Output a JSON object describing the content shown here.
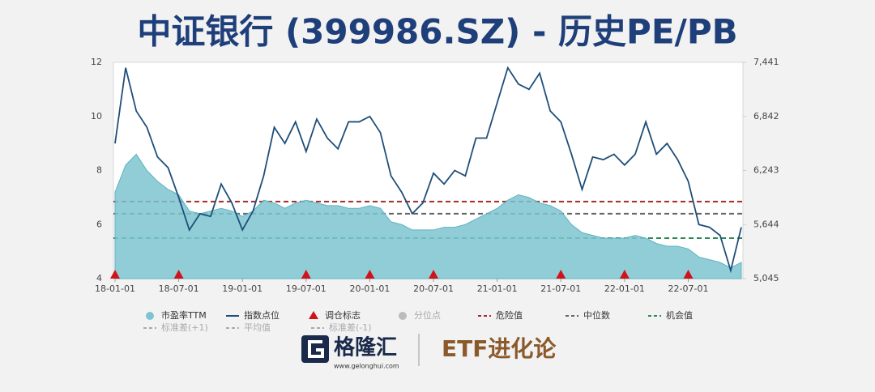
{
  "chart_data": {
    "type": "pe-band",
    "title": "中证银行 (399986.SZ) - 历史PE/PB",
    "categories": [
      "18-01-01",
      null,
      null,
      null,
      null,
      null,
      "18-07-01",
      null,
      null,
      null,
      null,
      null,
      "19-01-01",
      null,
      null,
      null,
      null,
      null,
      "19-07-01",
      null,
      null,
      null,
      null,
      null,
      "20-01-01",
      null,
      null,
      null,
      null,
      null,
      "20-07-01",
      null,
      null,
      null,
      null,
      null,
      "21-01-01",
      null,
      null,
      null,
      null,
      null,
      "21-07-01",
      null,
      null,
      null,
      null,
      null,
      "22-01-01",
      null,
      null,
      null,
      null,
      null,
      "22-07-01",
      null,
      null,
      null,
      null,
      null
    ],
    "ylim": [
      4,
      12
    ],
    "yticks": [
      4,
      6,
      8,
      10,
      12
    ],
    "y2lim": [
      5045,
      7441
    ],
    "y2ticks": [
      {
        "value": 5045,
        "label": "5,045"
      },
      {
        "value": 5644,
        "label": "5,644"
      },
      {
        "value": 6243,
        "label": "6,243"
      },
      {
        "value": 6842,
        "label": "6,842"
      },
      {
        "value": 7441,
        "label": "7,441"
      }
    ],
    "series": [
      {
        "name": "市盈率TTM",
        "kind": "area",
        "color": "#7cc4d0",
        "values": [
          7.2,
          8.2,
          8.6,
          8.0,
          7.6,
          7.3,
          7.1,
          6.5,
          6.4,
          6.5,
          6.6,
          6.5,
          6.3,
          6.5,
          6.9,
          6.8,
          6.6,
          6.8,
          6.9,
          6.8,
          6.7,
          6.7,
          6.6,
          6.6,
          6.7,
          6.6,
          6.1,
          6.0,
          5.8,
          5.8,
          5.8,
          5.9,
          5.9,
          6.0,
          6.2,
          6.4,
          6.6,
          6.9,
          7.1,
          7.0,
          6.8,
          6.7,
          6.5,
          6.0,
          5.7,
          5.6,
          5.5,
          5.5,
          5.5,
          5.6,
          5.5,
          5.3,
          5.2,
          5.2,
          5.1,
          4.8,
          4.7,
          4.6,
          4.4,
          4.6
        ]
      },
      {
        "name": "指数点位",
        "kind": "line",
        "axis": "y2",
        "color": "#1f4e79",
        "values": [
          6543,
          7381,
          6902,
          6722,
          6393,
          6273,
          5944,
          5584,
          5764,
          5734,
          6093,
          5884,
          5584,
          5794,
          6183,
          6722,
          6543,
          6782,
          6453,
          6812,
          6602,
          6483,
          6782,
          6782,
          6842,
          6662,
          6183,
          6003,
          5764,
          5884,
          6213,
          6093,
          6243,
          6183,
          6602,
          6602,
          6992,
          7381,
          7201,
          7142,
          7321,
          6902,
          6782,
          6423,
          6033,
          6393,
          6363,
          6423,
          6303,
          6423,
          6782,
          6423,
          6543,
          6363,
          6123,
          5644,
          5614,
          5524,
          5135,
          5614
        ]
      },
      {
        "name": "调仓标志",
        "kind": "marker",
        "color": "#d0121b",
        "values": [
          4,
          null,
          null,
          null,
          null,
          null,
          4,
          null,
          null,
          null,
          null,
          null,
          null,
          null,
          null,
          null,
          null,
          null,
          4,
          null,
          null,
          null,
          null,
          null,
          4,
          null,
          null,
          null,
          null,
          null,
          4,
          null,
          null,
          null,
          null,
          null,
          null,
          null,
          null,
          null,
          null,
          null,
          4,
          null,
          null,
          null,
          null,
          null,
          4,
          null,
          null,
          null,
          null,
          null,
          4,
          null,
          null,
          null,
          null,
          null
        ]
      },
      {
        "name": "分位点",
        "kind": "point",
        "color": "#bbbbbb",
        "visible": false
      }
    ],
    "reference_lines": [
      {
        "name": "危险值",
        "color": "#a52a2a",
        "value": 6.85
      },
      {
        "name": "中位数",
        "color": "#666666",
        "value": 6.4
      },
      {
        "name": "机会值",
        "color": "#2e8b57",
        "value": 5.5
      },
      {
        "name": "标准差(+1)",
        "color": "#aaaaaa",
        "visible": false
      },
      {
        "name": "平均值",
        "color": "#aaaaaa",
        "visible": false
      },
      {
        "name": "标准差(-1)",
        "color": "#aaaaaa",
        "visible": false
      }
    ],
    "footer": {
      "brand": "格隆汇",
      "url": "www.gelonghui.com",
      "column": "ETF进化论"
    }
  }
}
